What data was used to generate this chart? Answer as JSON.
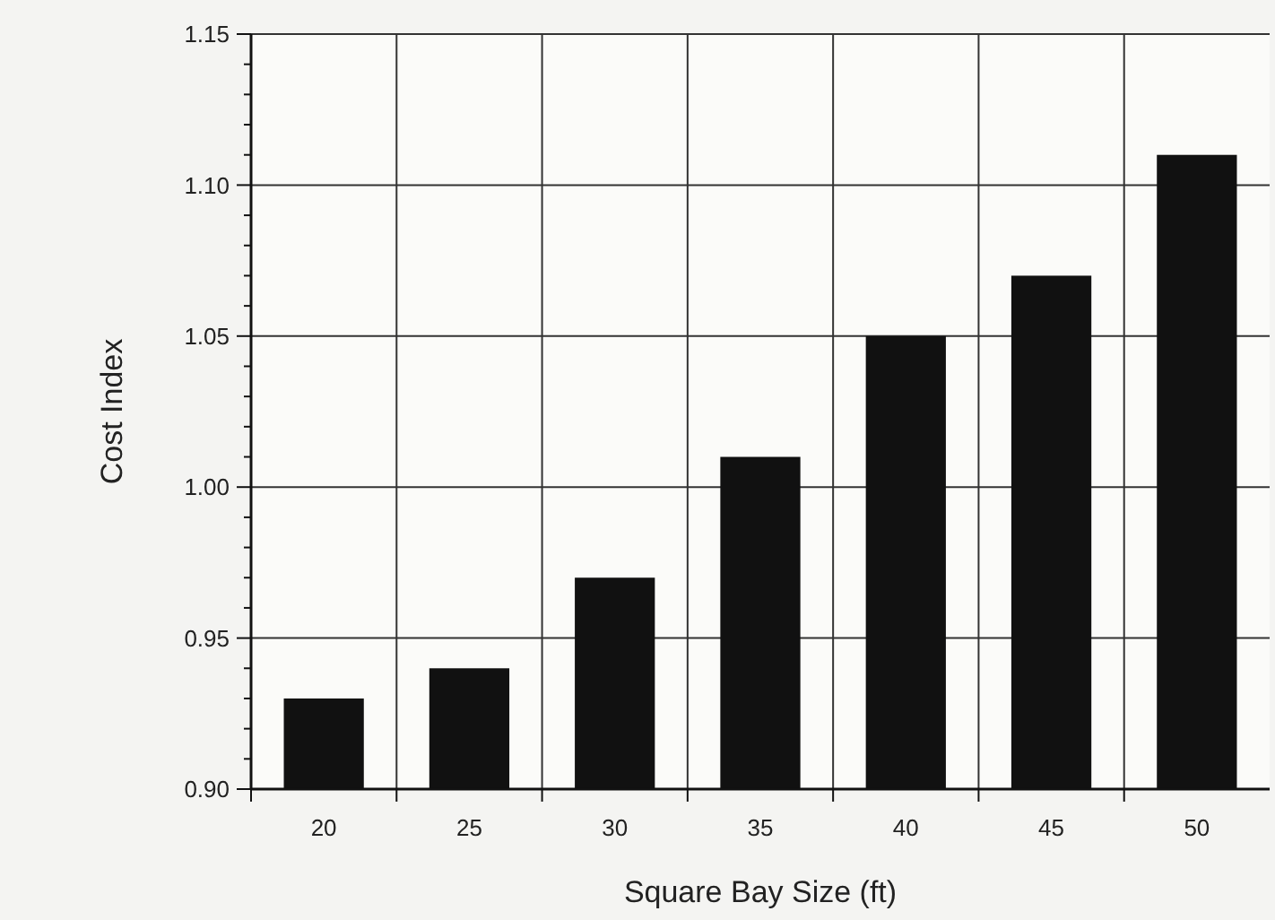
{
  "chart_data": {
    "type": "bar",
    "xlabel": "Square Bay Size (ft)",
    "ylabel": "Cost Index",
    "categories": [
      "20",
      "25",
      "30",
      "35",
      "40",
      "45",
      "50"
    ],
    "values": [
      0.93,
      0.94,
      0.97,
      1.01,
      1.05,
      1.07,
      1.11
    ],
    "color": "#111111",
    "ylim": [
      0.9,
      1.15
    ],
    "yticks": [
      {
        "value": 0.9,
        "label": "0.90"
      },
      {
        "value": 0.91,
        "label": null
      },
      {
        "value": 0.92,
        "label": null
      },
      {
        "value": 0.93,
        "label": null
      },
      {
        "value": 0.94,
        "label": null
      },
      {
        "value": 0.95,
        "label": "0.95"
      },
      {
        "value": 0.96,
        "label": null
      },
      {
        "value": 0.97,
        "label": null
      },
      {
        "value": 0.98,
        "label": null
      },
      {
        "value": 0.99,
        "label": null
      },
      {
        "value": 1.0,
        "label": "1.00"
      },
      {
        "value": 1.01,
        "label": null
      },
      {
        "value": 1.02,
        "label": null
      },
      {
        "value": 1.03,
        "label": null
      },
      {
        "value": 1.04,
        "label": null
      },
      {
        "value": 1.05,
        "label": "1.05"
      },
      {
        "value": 1.06,
        "label": null
      },
      {
        "value": 1.07,
        "label": null
      },
      {
        "value": 1.08,
        "label": null
      },
      {
        "value": 1.09,
        "label": null
      },
      {
        "value": 1.1,
        "label": "1.10"
      },
      {
        "value": 1.11,
        "label": null
      },
      {
        "value": 1.12,
        "label": null
      },
      {
        "value": 1.13,
        "label": null
      },
      {
        "value": 1.14,
        "label": null
      },
      {
        "value": 1.15,
        "label": "1.15"
      }
    ],
    "grid": true
  }
}
